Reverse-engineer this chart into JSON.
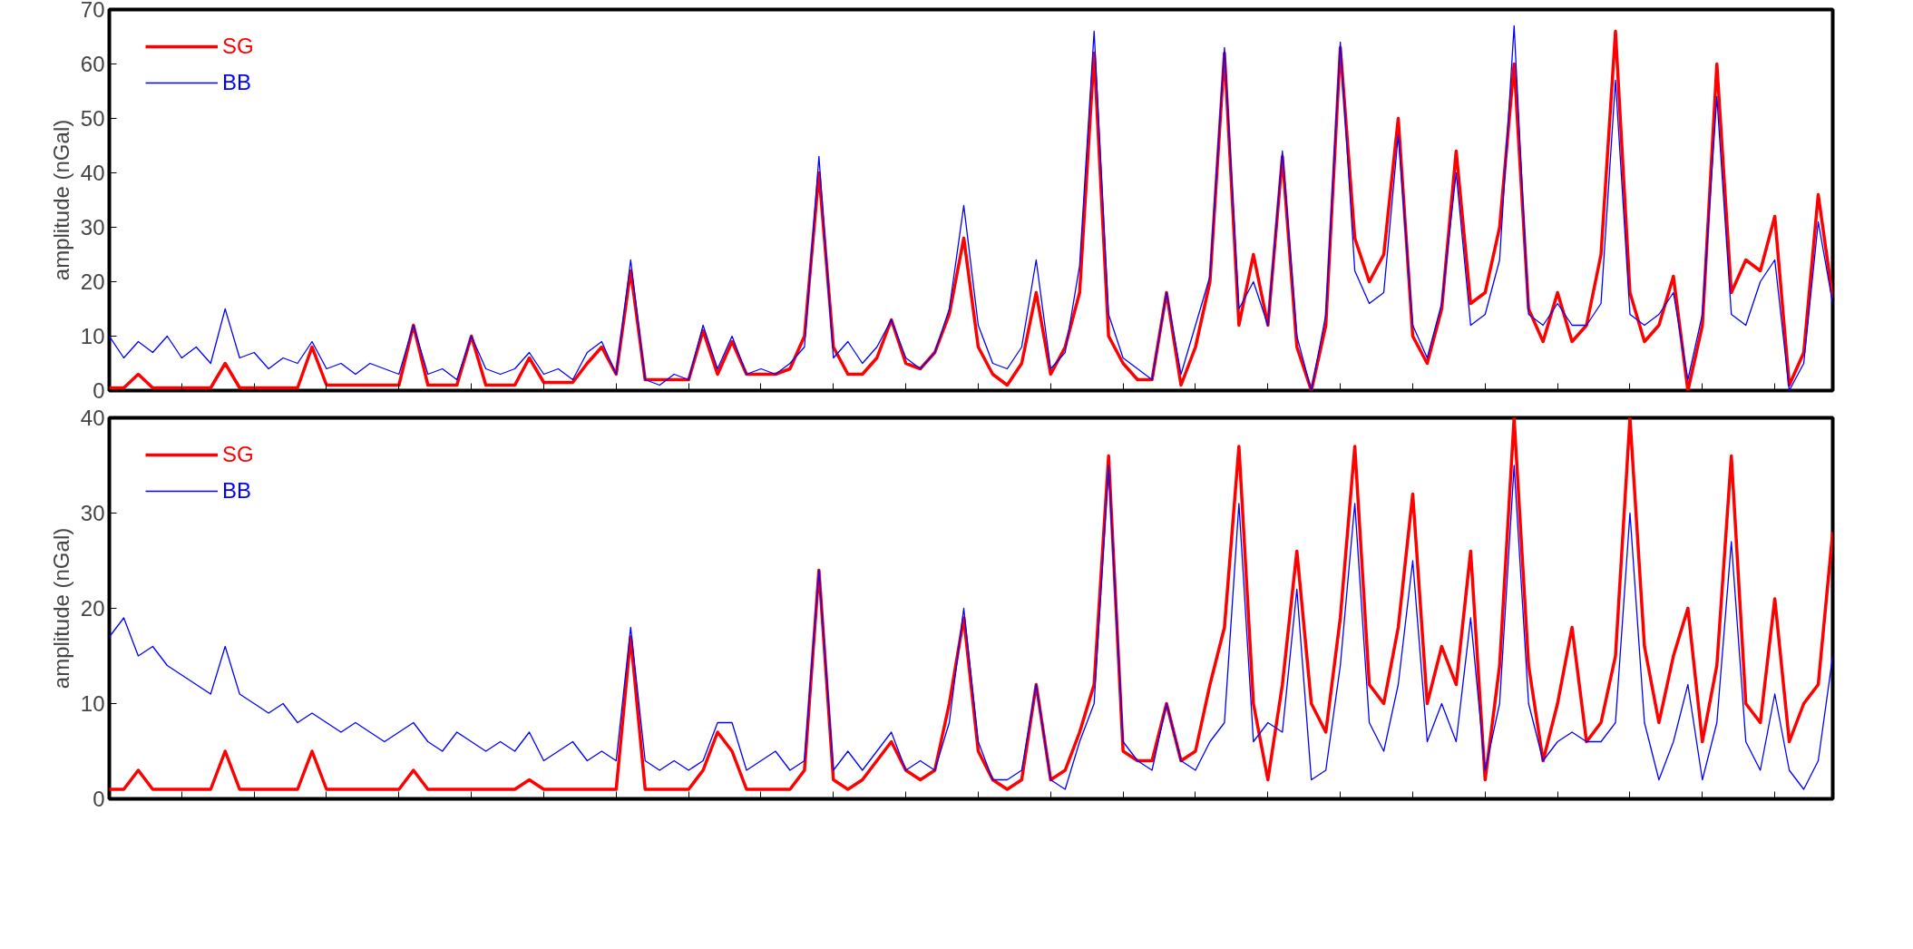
{
  "chart_data": [
    {
      "type": "line",
      "ylabel": "amplitude (nGal)",
      "ylim": [
        0,
        70
      ],
      "yticks": [
        0,
        10,
        20,
        30,
        40,
        50,
        60,
        70
      ],
      "grid": false,
      "legend": "top left",
      "tick_labels": "y",
      "categories": [
        null,
        null,
        null,
        null,
        null,
        null,
        null,
        null,
        null,
        null,
        null,
        null,
        null,
        null,
        null,
        null,
        null,
        null,
        null,
        null,
        null,
        null,
        null,
        null,
        null,
        null,
        null,
        null,
        null,
        null,
        null,
        null,
        null,
        null,
        null,
        null,
        null,
        null,
        null,
        null,
        null,
        null,
        null,
        null,
        null,
        null,
        null,
        null,
        null,
        null,
        null,
        null,
        null,
        null,
        null,
        null,
        null,
        null,
        null,
        null,
        null,
        null,
        null,
        null,
        null,
        null,
        null,
        null,
        null,
        null,
        null,
        null,
        null,
        null,
        null,
        null,
        null,
        null,
        null,
        null,
        null,
        null,
        null,
        null,
        null,
        null,
        null,
        null,
        null,
        null,
        null,
        null,
        null,
        null,
        null,
        null,
        null,
        null,
        null,
        null,
        null,
        null,
        null,
        null,
        null,
        null,
        null,
        null,
        null,
        null,
        null,
        null,
        null,
        null,
        null,
        null,
        null,
        null,
        null,
        null
      ],
      "series": [
        {
          "name": "SG",
          "color": "#ff0000",
          "values": [
            0.5,
            0.5,
            3,
            0.5,
            0.5,
            0.5,
            0.5,
            0.5,
            5,
            0.5,
            0.5,
            0.5,
            0.5,
            0.5,
            8,
            1,
            1,
            1,
            1,
            1,
            1,
            12,
            1,
            1,
            1,
            10,
            1,
            1,
            1,
            6,
            1.5,
            1.5,
            1.5,
            5,
            8,
            3,
            22,
            2,
            2,
            2,
            2,
            11,
            3,
            9,
            3,
            3,
            3,
            4,
            10,
            40,
            8,
            3,
            3,
            6,
            13,
            5,
            4,
            7,
            14,
            28,
            8,
            3,
            1,
            5,
            18,
            3,
            8,
            18,
            62,
            10,
            5,
            2,
            2,
            18,
            1,
            8,
            20,
            62,
            12,
            25,
            12,
            43,
            8,
            0,
            12,
            63,
            28,
            20,
            25,
            50,
            10,
            5,
            15,
            44,
            16,
            18,
            30,
            60,
            15,
            9,
            18,
            9,
            12,
            25,
            66,
            18,
            9,
            12,
            21,
            0,
            12,
            60,
            18,
            24,
            22,
            32,
            1,
            7,
            36,
            17
          ]
        },
        {
          "name": "BB",
          "color": "#0000ff",
          "values": [
            10,
            6,
            9,
            7,
            10,
            6,
            8,
            5,
            15,
            6,
            7,
            4,
            6,
            5,
            9,
            4,
            5,
            3,
            5,
            4,
            3,
            12,
            3,
            4,
            2,
            10,
            4,
            3,
            4,
            7,
            3,
            4,
            2,
            7,
            9,
            3,
            24,
            2,
            1,
            3,
            2,
            12,
            4,
            10,
            3,
            4,
            3,
            5,
            8,
            43,
            6,
            9,
            5,
            8,
            13,
            6,
            4,
            7,
            15,
            34,
            12,
            5,
            4,
            8,
            24,
            4,
            7,
            23,
            66,
            14,
            6,
            4,
            2,
            18,
            3,
            12,
            21,
            63,
            15,
            20,
            12,
            44,
            10,
            0,
            14,
            64,
            22,
            16,
            18,
            47,
            12,
            6,
            16,
            40,
            12,
            14,
            24,
            67,
            14,
            12,
            16,
            12,
            12,
            16,
            57,
            14,
            12,
            14,
            18,
            2,
            14,
            54,
            14,
            12,
            20,
            24,
            0,
            5,
            31,
            16
          ]
        }
      ]
    },
    {
      "type": "line",
      "ylabel": "amplitude (nGal)",
      "ylim": [
        0,
        40
      ],
      "yticks": [
        0,
        10,
        20,
        30,
        40
      ],
      "grid": false,
      "legend": "top left",
      "tick_labels": "y",
      "categories": [
        null,
        null,
        null,
        null,
        null,
        null,
        null,
        null,
        null,
        null,
        null,
        null,
        null,
        null,
        null,
        null,
        null,
        null,
        null,
        null,
        null,
        null,
        null,
        null,
        null,
        null,
        null,
        null,
        null,
        null,
        null,
        null,
        null,
        null,
        null,
        null,
        null,
        null,
        null,
        null,
        null,
        null,
        null,
        null,
        null,
        null,
        null,
        null,
        null,
        null,
        null,
        null,
        null,
        null,
        null,
        null,
        null,
        null,
        null,
        null,
        null,
        null,
        null,
        null,
        null,
        null,
        null,
        null,
        null,
        null,
        null,
        null,
        null,
        null,
        null,
        null,
        null,
        null,
        null,
        null,
        null,
        null,
        null,
        null,
        null,
        null,
        null,
        null,
        null,
        null,
        null,
        null,
        null,
        null,
        null,
        null,
        null,
        null,
        null,
        null,
        null,
        null,
        null,
        null,
        null,
        null,
        null,
        null,
        null,
        null,
        null,
        null,
        null,
        null,
        null,
        null,
        null,
        null,
        null,
        null
      ],
      "series": [
        {
          "name": "SG",
          "color": "#ff0000",
          "values": [
            1,
            1,
            3,
            1,
            1,
            1,
            1,
            1,
            5,
            1,
            1,
            1,
            1,
            1,
            5,
            1,
            1,
            1,
            1,
            1,
            1,
            3,
            1,
            1,
            1,
            1,
            1,
            1,
            1,
            2,
            1,
            1,
            1,
            1,
            1,
            1,
            17,
            1,
            1,
            1,
            1,
            3,
            7,
            5,
            1,
            1,
            1,
            1,
            3,
            24,
            2,
            1,
            2,
            4,
            6,
            3,
            2,
            3,
            10,
            19,
            5,
            2,
            1,
            2,
            12,
            2,
            3,
            7,
            12,
            36,
            5,
            4,
            4,
            10,
            4,
            5,
            12,
            18,
            37,
            10,
            2,
            12,
            26,
            10,
            7,
            19,
            37,
            12,
            10,
            18,
            32,
            10,
            16,
            12,
            26,
            2,
            14,
            40,
            14,
            4,
            10,
            18,
            6,
            8,
            15,
            40,
            16,
            8,
            15,
            20,
            6,
            14,
            36,
            10,
            8,
            21,
            6,
            10,
            12,
            28
          ]
        },
        {
          "name": "BB",
          "color": "#0000ff",
          "values": [
            17,
            19,
            15,
            16,
            14,
            13,
            12,
            11,
            16,
            11,
            10,
            9,
            10,
            8,
            9,
            8,
            7,
            8,
            7,
            6,
            7,
            8,
            6,
            5,
            7,
            6,
            5,
            6,
            5,
            7,
            4,
            5,
            6,
            4,
            5,
            4,
            18,
            4,
            3,
            4,
            3,
            4,
            8,
            8,
            3,
            4,
            5,
            3,
            4,
            24,
            3,
            5,
            3,
            5,
            7,
            3,
            4,
            3,
            8,
            20,
            6,
            2,
            2,
            3,
            12,
            2,
            1,
            6,
            10,
            35,
            6,
            4,
            3,
            10,
            4,
            3,
            6,
            8,
            31,
            6,
            8,
            7,
            22,
            2,
            3,
            14,
            31,
            8,
            5,
            12,
            25,
            6,
            10,
            6,
            19,
            3,
            10,
            35,
            10,
            4,
            6,
            7,
            6,
            6,
            8,
            30,
            8,
            2,
            6,
            12,
            2,
            8,
            27,
            6,
            3,
            11,
            3,
            1,
            4,
            15
          ]
        }
      ]
    }
  ]
}
